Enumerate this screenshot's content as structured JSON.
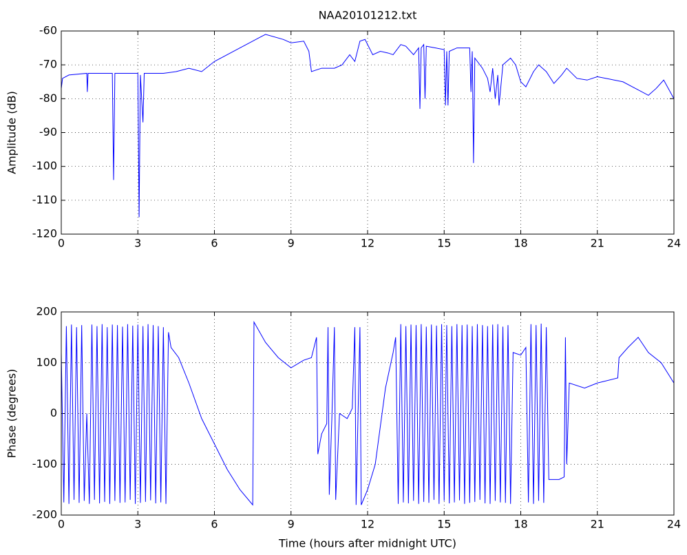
{
  "chart_data": [
    {
      "type": "line",
      "title": "NAA20101212.txt",
      "ylabel": "Amplitude (dB)",
      "xlim": [
        0,
        24
      ],
      "xticks": [
        0,
        3,
        6,
        9,
        12,
        15,
        18,
        21,
        24
      ],
      "ylim": [
        -120,
        -60
      ],
      "yticks": [
        -120,
        -110,
        -100,
        -90,
        -80,
        -70,
        -60
      ],
      "grid": true,
      "series": [
        {
          "color": "#0000ff",
          "x": [
            0,
            0.05,
            0.3,
            1.0,
            1.02,
            1.05,
            2.0,
            2.05,
            2.1,
            3.0,
            3.05,
            3.1,
            3.2,
            3.25,
            4.0,
            4.5,
            5.0,
            5.5,
            6.0,
            7.0,
            8.0,
            8.7,
            9.0,
            9.5,
            9.7,
            9.8,
            10.2,
            10.7,
            11.0,
            11.3,
            11.5,
            11.7,
            11.9,
            12.2,
            12.5,
            12.8,
            13.0,
            13.3,
            13.5,
            13.8,
            14.0,
            14.05,
            14.1,
            14.2,
            14.25,
            14.3,
            15.0,
            15.05,
            15.1,
            15.15,
            15.2,
            15.5,
            16.0,
            16.05,
            16.1,
            16.15,
            16.2,
            16.5,
            16.7,
            16.8,
            16.9,
            17.0,
            17.1,
            17.15,
            17.3,
            17.6,
            17.8,
            18.0,
            18.2,
            18.5,
            18.7,
            19.0,
            19.3,
            19.6,
            19.8,
            20.2,
            20.6,
            21.0,
            22.0,
            22.5,
            23.0,
            23.3,
            23.6,
            24
          ],
          "values": [
            -77,
            -74,
            -73,
            -72.5,
            -78,
            -72.5,
            -72.5,
            -104,
            -72.5,
            -72.5,
            -115,
            -73,
            -87,
            -72.5,
            -72.5,
            -72,
            -71,
            -72,
            -69,
            -65,
            -61,
            -62.5,
            -63.5,
            -63,
            -66,
            -72,
            -71,
            -71,
            -70,
            -67,
            -69,
            -63,
            -62.5,
            -67,
            -66,
            -66.5,
            -67,
            -64,
            -64.5,
            -67,
            -65,
            -83,
            -65,
            -64,
            -80,
            -64.5,
            -65.5,
            -82,
            -66,
            -82,
            -66,
            -65,
            -65,
            -78,
            -66,
            -99,
            -68,
            -71,
            -74,
            -78,
            -71,
            -80,
            -73,
            -82,
            -70,
            -68,
            -70,
            -75,
            -76.5,
            -72,
            -70,
            -72,
            -75.5,
            -73,
            -71,
            -74,
            -74.5,
            -73.5,
            -75,
            -77,
            -79,
            -77,
            -74.5,
            -80
          ]
        }
      ]
    },
    {
      "type": "line",
      "xlabel": "Time (hours after midnight UTC)",
      "ylabel": "Phase (degrees)",
      "xlim": [
        0,
        24
      ],
      "xticks": [
        0,
        3,
        6,
        9,
        12,
        15,
        18,
        21,
        24
      ],
      "ylim": [
        -200,
        200
      ],
      "yticks": [
        -200,
        -100,
        0,
        100,
        200
      ],
      "grid": true,
      "series": [
        {
          "color": "#0000ff",
          "x": [
            0,
            0.1,
            0.2,
            0.3,
            0.4,
            0.5,
            0.6,
            0.7,
            0.8,
            0.9,
            1,
            1.1,
            1.2,
            1.3,
            1.4,
            1.5,
            1.6,
            1.7,
            1.8,
            1.9,
            2,
            2.1,
            2.2,
            2.3,
            2.4,
            2.5,
            2.6,
            2.7,
            2.8,
            2.9,
            3,
            3.1,
            3.2,
            3.3,
            3.4,
            3.5,
            3.6,
            3.7,
            3.8,
            3.9,
            4,
            4.1,
            4.2,
            4.3,
            4.6,
            5,
            5.5,
            6,
            6.5,
            7,
            7.5,
            7.55,
            8,
            8.5,
            9,
            9.5,
            9.8,
            10,
            10.05,
            10.2,
            10.4,
            10.45,
            10.5,
            10.6,
            10.7,
            10.75,
            10.9,
            11.2,
            11.4,
            11.5,
            11.55,
            11.7,
            11.75,
            12,
            12.3,
            12.7,
            13,
            13.1,
            13.2,
            13.3,
            13.4,
            13.5,
            13.6,
            13.7,
            13.8,
            13.9,
            14,
            14.1,
            14.2,
            14.3,
            14.4,
            14.5,
            14.6,
            14.7,
            14.8,
            14.9,
            15,
            15.1,
            15.2,
            15.3,
            15.4,
            15.5,
            15.6,
            15.7,
            15.8,
            15.9,
            16,
            16.1,
            16.2,
            16.3,
            16.4,
            16.5,
            16.6,
            16.7,
            16.8,
            16.9,
            17,
            17.1,
            17.2,
            17.3,
            17.4,
            17.5,
            17.6,
            17.7,
            18,
            18.2,
            18.3,
            18.4,
            18.5,
            18.6,
            18.7,
            18.8,
            18.9,
            19,
            19.1,
            19.5,
            19.7,
            19.75,
            19.8,
            19.9,
            20.5,
            21,
            21.8,
            21.85,
            22.2,
            22.6,
            23,
            23.5,
            24
          ],
          "values": [
            120,
            -175,
            172,
            -178,
            175,
            -170,
            170,
            -176,
            174,
            -172,
            0,
            -178,
            175,
            -170,
            172,
            -177,
            176,
            -174,
            170,
            -178,
            175,
            -172,
            174,
            -176,
            171,
            -175,
            176,
            -170,
            173,
            -178,
            175,
            -176,
            172,
            -174,
            176,
            -171,
            174,
            -177,
            172,
            -175,
            170,
            -178,
            160,
            130,
            110,
            60,
            -10,
            -60,
            -110,
            -150,
            -180,
            180,
            140,
            110,
            90,
            105,
            110,
            150,
            -80,
            -40,
            -20,
            170,
            -160,
            -10,
            170,
            -170,
            0,
            -10,
            10,
            170,
            -180,
            170,
            -180,
            -150,
            -100,
            50,
            120,
            150,
            -178,
            176,
            -175,
            172,
            -177,
            175,
            -172,
            174,
            -178,
            176,
            -174,
            171,
            -176,
            175,
            -170,
            173,
            -178,
            176,
            -172,
            174,
            -177,
            172,
            -175,
            176,
            -171,
            174,
            -178,
            175,
            -176,
            172,
            -174,
            176,
            -170,
            174,
            -177,
            172,
            -178,
            175,
            -172,
            176,
            -175,
            171,
            -176,
            174,
            -178,
            120,
            115,
            130,
            -175,
            176,
            -178,
            174,
            -172,
            177,
            -176,
            170,
            -130,
            -130,
            -125,
            150,
            -100,
            60,
            50,
            60,
            70,
            110,
            130,
            150,
            120,
            100,
            60
          ]
        }
      ]
    }
  ]
}
